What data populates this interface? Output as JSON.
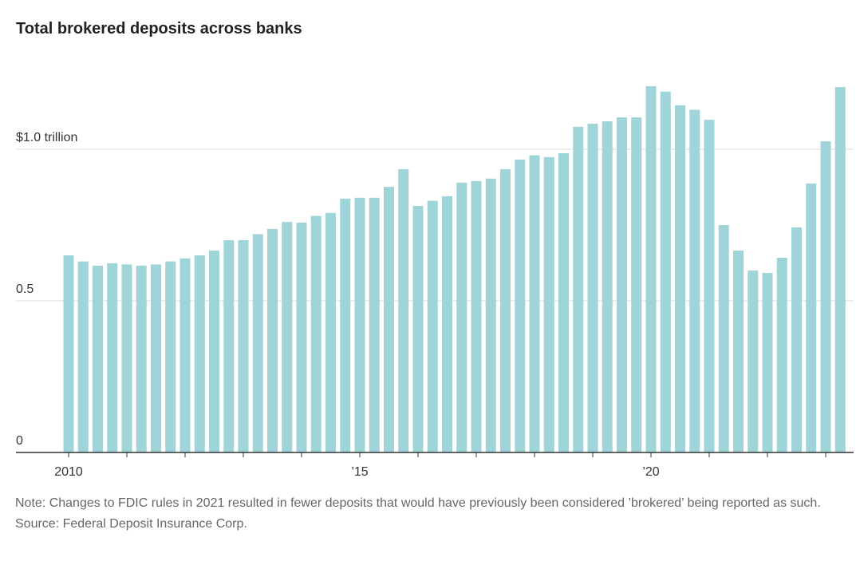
{
  "chart_data": {
    "type": "bar",
    "title": "Total brokered deposits across banks",
    "note": "Note: Changes to FDIC rules in 2021 resulted in fewer deposits that would have previously been considered ’brokered’ being reported as such.",
    "source": "Source: Federal Deposit Insurance Corp.",
    "categories": [
      "2010",
      null,
      null,
      null,
      null,
      null,
      null,
      null,
      null,
      null,
      null,
      null,
      null,
      null,
      null,
      null,
      null,
      null,
      null,
      null,
      "’15",
      null,
      null,
      null,
      null,
      null,
      null,
      null,
      null,
      null,
      null,
      null,
      null,
      null,
      null,
      null,
      null,
      null,
      null,
      null,
      "’20",
      null,
      null,
      null,
      null,
      null,
      null,
      null,
      null,
      null,
      null,
      null,
      null,
      null
    ],
    "values": [
      0.65,
      0.63,
      0.616,
      0.624,
      0.62,
      0.616,
      0.62,
      0.63,
      0.64,
      0.65,
      0.666,
      0.7,
      0.7,
      0.72,
      0.737,
      0.76,
      0.758,
      0.78,
      0.79,
      0.837,
      0.84,
      0.84,
      0.876,
      0.934,
      0.813,
      0.83,
      0.845,
      0.89,
      0.895,
      0.903,
      0.934,
      0.966,
      0.98,
      0.974,
      0.987,
      1.074,
      1.084,
      1.092,
      1.105,
      1.105,
      1.208,
      1.19,
      1.145,
      1.13,
      1.097,
      0.75,
      0.666,
      0.6,
      0.592,
      0.642,
      0.742,
      0.887,
      1.026,
      1.205
    ],
    "color": "#9fd4d8",
    "ylim": [
      0,
      1.25
    ],
    "yticks": [
      0,
      0.5,
      {
        "value": 1,
        "label": "$1.0 trillion"
      }
    ],
    "grid": true
  }
}
